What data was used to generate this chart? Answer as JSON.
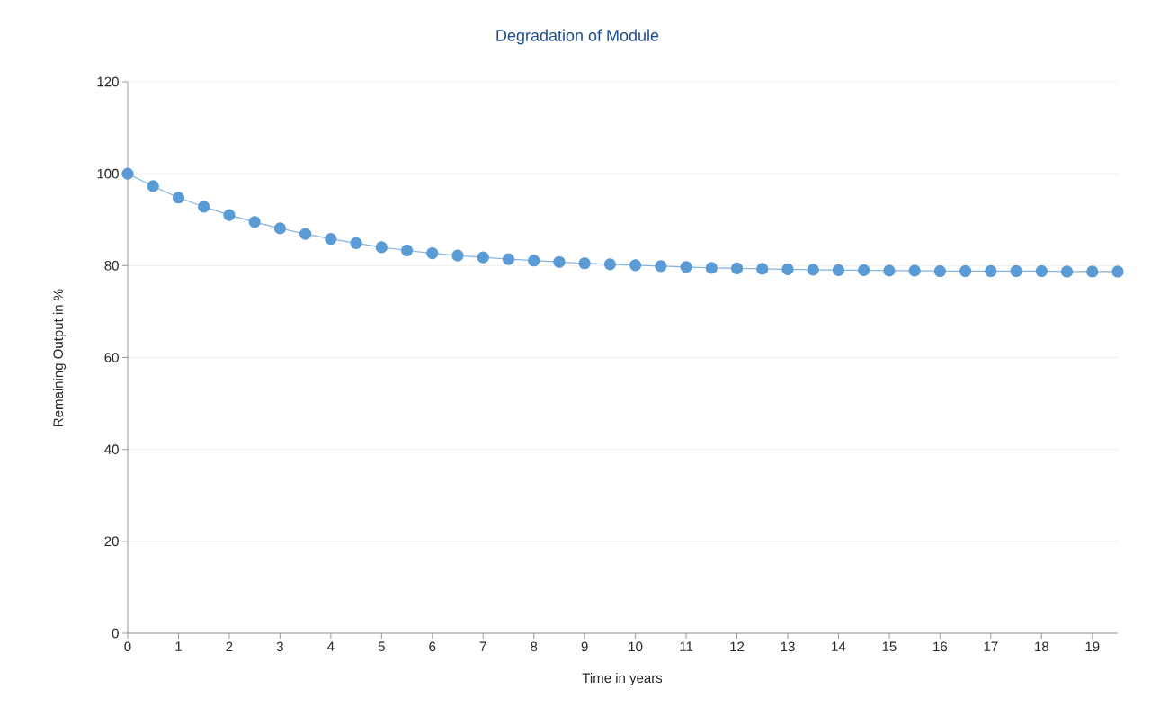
{
  "chart_data": {
    "type": "line",
    "title": "Degradation of Module",
    "xlabel": "Time in years",
    "ylabel": "Remaining Output in %",
    "x": [
      0,
      0.5,
      1,
      1.5,
      2,
      2.5,
      3,
      3.5,
      4,
      4.5,
      5,
      5.5,
      6,
      6.5,
      7,
      7.5,
      8,
      8.5,
      9,
      9.5,
      10,
      10.5,
      11,
      11.5,
      12,
      12.5,
      13,
      13.5,
      14,
      14.5,
      15,
      15.5,
      16,
      16.5,
      17,
      17.5,
      18,
      18.5,
      19,
      19.5
    ],
    "series": [
      {
        "color": "#5b9bd5",
        "values": [
          100,
          97.3,
          94.8,
          92.8,
          91.0,
          89.5,
          88.1,
          86.9,
          85.8,
          84.9,
          84.0,
          83.3,
          82.7,
          82.2,
          81.8,
          81.4,
          81.1,
          80.8,
          80.5,
          80.3,
          80.1,
          79.9,
          79.7,
          79.5,
          79.4,
          79.3,
          79.2,
          79.1,
          79.0,
          79.0,
          78.9,
          78.9,
          78.8,
          78.8,
          78.8,
          78.8,
          78.8,
          78.7,
          78.7,
          78.7
        ]
      }
    ],
    "xlim": [
      0,
      19.5
    ],
    "ylim": [
      0,
      120
    ],
    "xticks": [
      0,
      1,
      2,
      3,
      4,
      5,
      6,
      7,
      8,
      9,
      10,
      11,
      12,
      13,
      14,
      15,
      16,
      17,
      18,
      19
    ],
    "yticks": [
      0,
      20,
      40,
      60,
      80,
      100,
      120
    ],
    "grid": "y",
    "marker": "circle",
    "line_style": "solid"
  }
}
